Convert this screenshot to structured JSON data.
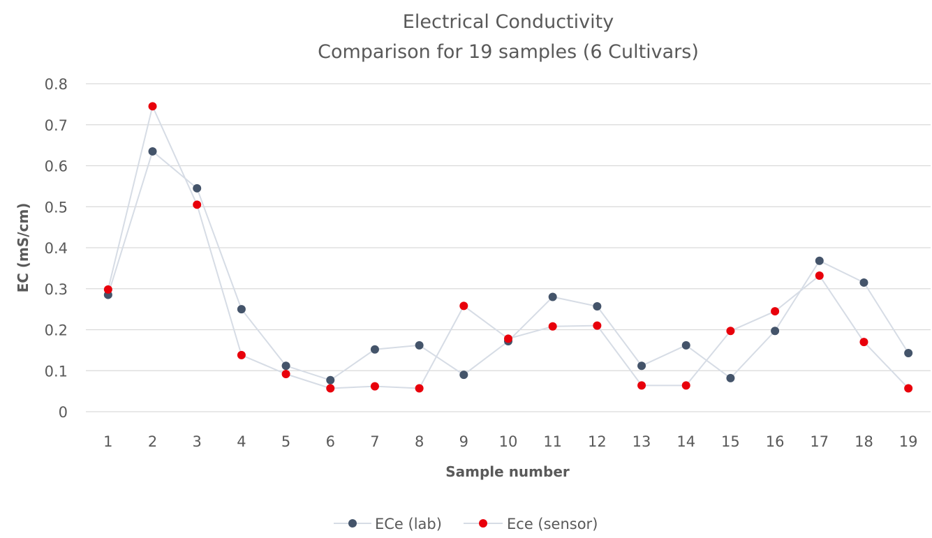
{
  "chart_data": {
    "type": "line",
    "title": "Electrical Conductivity",
    "subtitle": "Comparison for 19 samples (6 Cultivars)",
    "xlabel": "Sample number",
    "ylabel": "EC (mS/cm)",
    "categories": [
      "1",
      "2",
      "3",
      "4",
      "5",
      "6",
      "7",
      "8",
      "9",
      "10",
      "11",
      "12",
      "13",
      "14",
      "15",
      "16",
      "17",
      "18",
      "19"
    ],
    "ylim": [
      0,
      0.8
    ],
    "yticks": [
      "0",
      "0.1",
      "0.2",
      "0.3",
      "0.4",
      "0.5",
      "0.6",
      "0.7",
      "0.8"
    ],
    "grid": true,
    "legend_position": "bottom",
    "series": [
      {
        "name": "ECe (lab)",
        "color": "#44546a",
        "line_color": "#d6dce5",
        "values": [
          0.285,
          0.635,
          0.545,
          0.25,
          0.112,
          0.077,
          0.152,
          0.162,
          0.09,
          0.172,
          0.28,
          0.257,
          0.112,
          0.162,
          0.082,
          0.197,
          0.368,
          0.315,
          0.143
        ]
      },
      {
        "name": "Ece (sensor)",
        "color": "#e8000b",
        "line_color": "#d6dce5",
        "values": [
          0.298,
          0.745,
          0.505,
          0.138,
          0.092,
          0.057,
          0.062,
          0.057,
          0.258,
          0.178,
          0.208,
          0.21,
          0.064,
          0.064,
          0.197,
          0.245,
          0.332,
          0.17,
          0.057
        ]
      }
    ]
  }
}
